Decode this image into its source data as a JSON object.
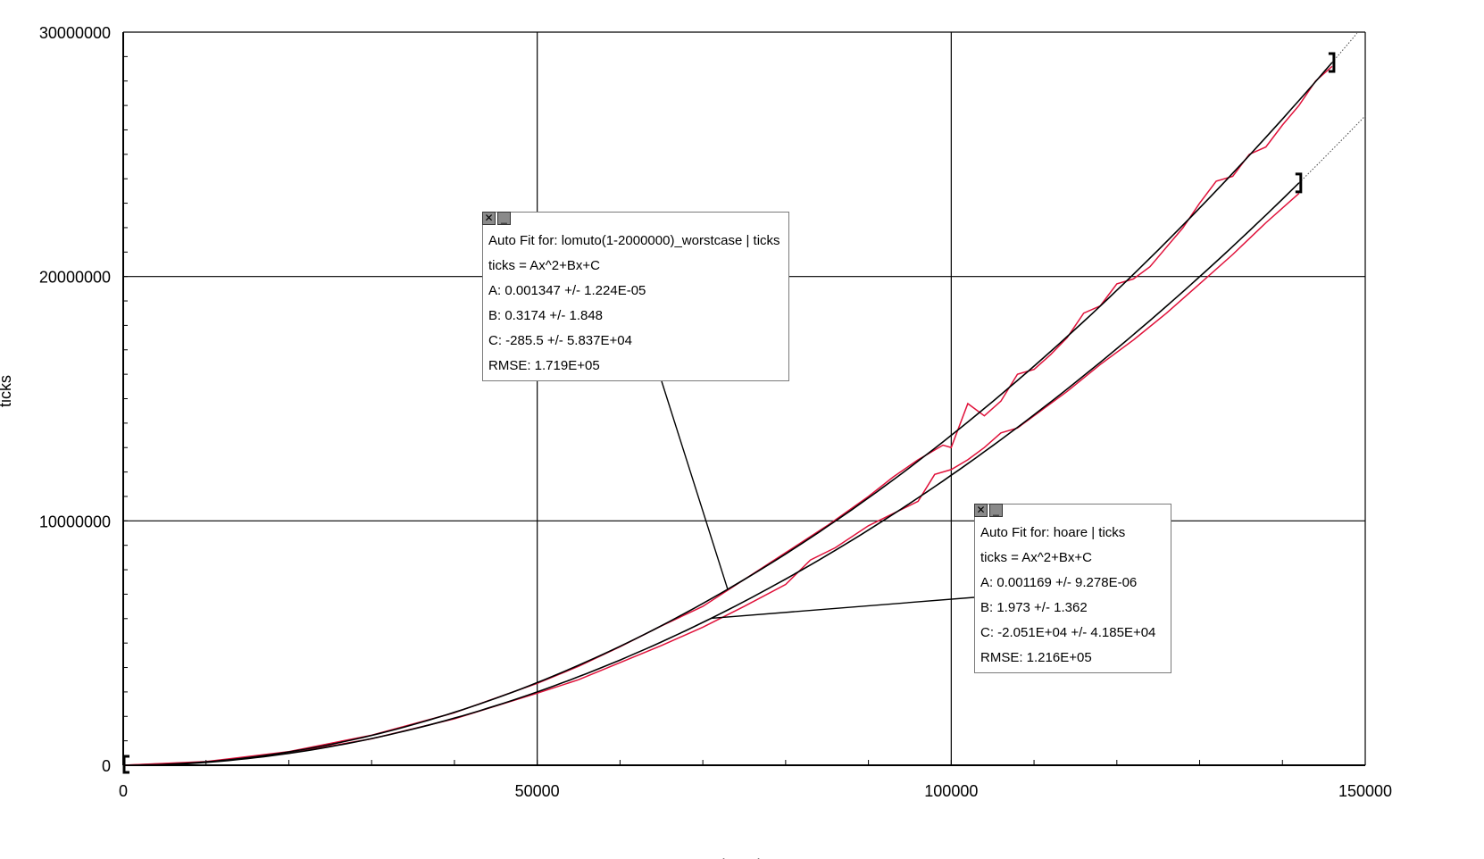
{
  "chart_data": {
    "type": "scatter",
    "xlabel": "length",
    "ylabel": "ticks",
    "xlim": [
      0,
      150000
    ],
    "ylim": [
      0,
      30000000
    ],
    "x_ticks": [
      "0",
      "50000",
      "100000",
      "150000"
    ],
    "y_ticks": [
      "0",
      "10000000",
      "20000000",
      "30000000"
    ],
    "grid": true,
    "data_color": "#e0113a",
    "fit_color": "#000000",
    "series": [
      {
        "name": "lomuto(1-2000000)_worstcase",
        "x": [
          0,
          10000,
          20000,
          30000,
          40000,
          50000,
          55000,
          60000,
          65000,
          70000,
          75000,
          80000,
          85000,
          90000,
          93000,
          96000,
          98000,
          99000,
          100000,
          102000,
          104000,
          106000,
          108000,
          110000,
          112000,
          114000,
          116000,
          118000,
          120000,
          122000,
          124000,
          126000,
          128000,
          130000,
          132000,
          134000,
          136000,
          138000,
          140000,
          142000,
          144000,
          146000
        ],
        "y": [
          0,
          150000,
          560000,
          1230000,
          2150000,
          3350000,
          4050000,
          4850000,
          5700000,
          6500000,
          7600000,
          8700000,
          9800000,
          11000000,
          11800000,
          12500000,
          12900000,
          13100000,
          13000000,
          14800000,
          14300000,
          14900000,
          16000000,
          16200000,
          16800000,
          17500000,
          18500000,
          18800000,
          19700000,
          19900000,
          20400000,
          21200000,
          22000000,
          23000000,
          23900000,
          24100000,
          25000000,
          25300000,
          26200000,
          27000000,
          28000000,
          28600000
        ],
        "fit": {
          "label": "Auto Fit for: lomuto(1-2000000)_worstcase | ticks",
          "equation": "ticks = Ax^2+Bx+C",
          "A": "A: 0.001347 +/- 1.224E-05",
          "B": "B: 0.3174 +/- 1.848",
          "C": "C: -285.5 +/- 5.837E+04",
          "RMSE": "RMSE: 1.719E+05",
          "coef": {
            "A": 0.001347,
            "B": 0.3174,
            "C": -285.5
          },
          "range": [
            0,
            146000
          ]
        }
      },
      {
        "name": "hoare",
        "x": [
          0,
          10000,
          20000,
          30000,
          40000,
          50000,
          55000,
          60000,
          65000,
          70000,
          75000,
          80000,
          83000,
          86000,
          90000,
          93000,
          96000,
          98000,
          100000,
          102000,
          104000,
          106000,
          108000,
          110000,
          114000,
          118000,
          122000,
          126000,
          130000,
          134000,
          138000,
          142000
        ],
        "y": [
          0,
          130000,
          490000,
          1080000,
          1900000,
          2950000,
          3500000,
          4200000,
          4900000,
          5650000,
          6500000,
          7400000,
          8400000,
          8900000,
          9800000,
          10300000,
          10800000,
          11900000,
          12100000,
          12500000,
          13000000,
          13600000,
          13800000,
          14300000,
          15300000,
          16400000,
          17400000,
          18500000,
          19700000,
          20900000,
          22200000,
          23400000
        ],
        "fit": {
          "label": "Auto Fit for: hoare | ticks",
          "equation": "ticks = Ax^2+Bx+C",
          "A": "A: 0.001169 +/- 9.278E-06",
          "B": "B: 1.973 +/- 1.362",
          "C": "C: -2.051E+04 +/- 4.185E+04",
          "RMSE": "RMSE: 1.216E+05",
          "coef": {
            "A": 0.001169,
            "B": 1.973,
            "C": -20510
          },
          "range": [
            0,
            142000
          ]
        }
      }
    ]
  },
  "fit_boxes": [
    {
      "series": 0,
      "close_label": "✕",
      "minimize_label": "_"
    },
    {
      "series": 1,
      "close_label": "✕",
      "minimize_label": "_"
    }
  ]
}
